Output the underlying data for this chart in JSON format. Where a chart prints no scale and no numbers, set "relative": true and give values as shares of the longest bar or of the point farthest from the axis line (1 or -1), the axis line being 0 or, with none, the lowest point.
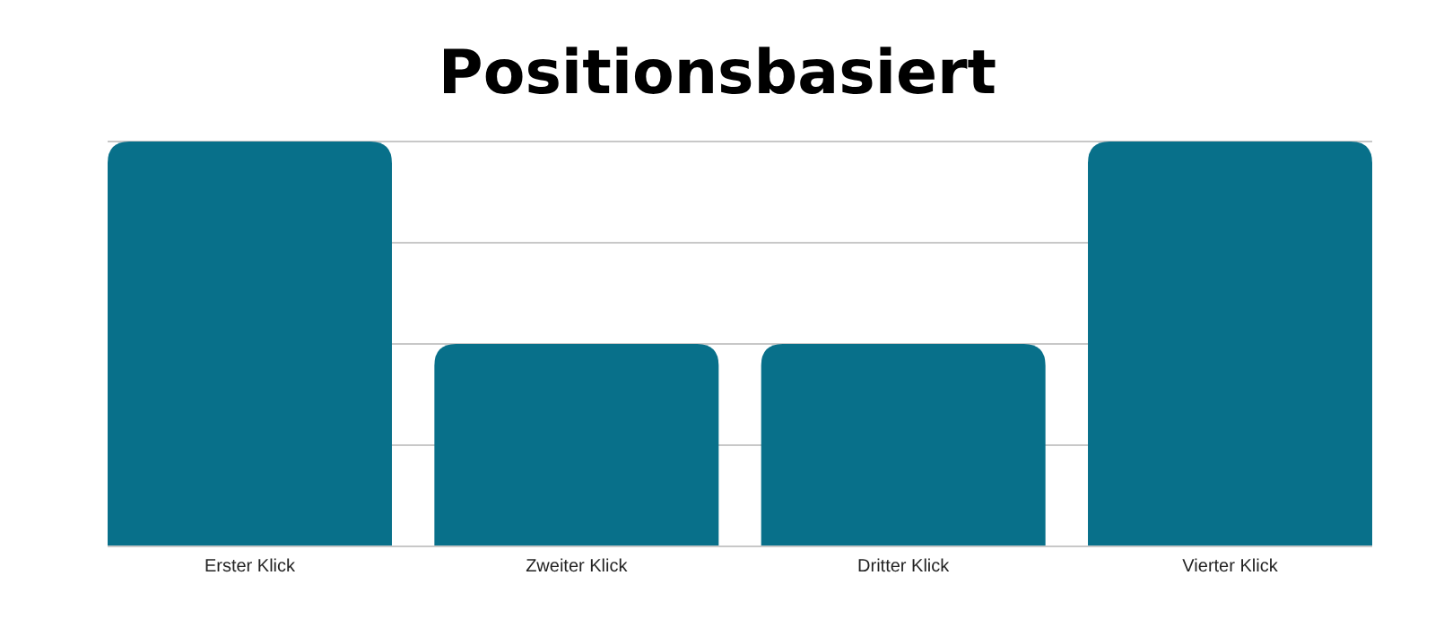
{
  "chart_data": {
    "type": "bar",
    "title": "Positionsbasiert",
    "categories": [
      "Erster Klick",
      "Zweiter Klick",
      "Dritter Klick",
      "Vierter Klick"
    ],
    "values": [
      1,
      0.5,
      0.5,
      1
    ],
    "color": "#08708a",
    "relative": true,
    "grid": "y"
  }
}
